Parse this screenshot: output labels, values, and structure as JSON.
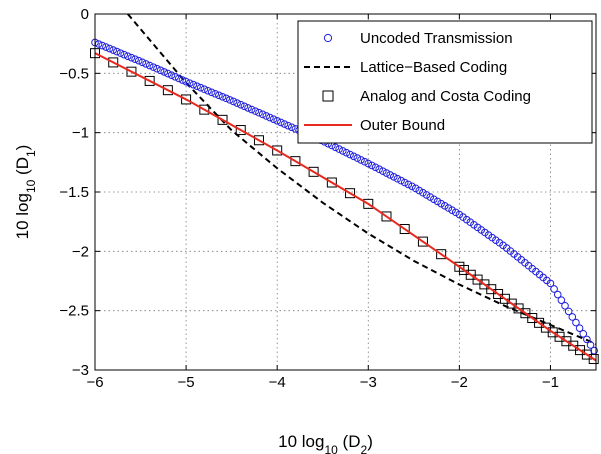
{
  "chart_data": {
    "type": "scatter",
    "xlabel": {
      "prefix": "10 log",
      "sub": "10",
      "suffix": " (D",
      "var_sub": "2",
      "close": ")"
    },
    "ylabel": {
      "prefix": "10 log",
      "sub": "10",
      "suffix": " (D",
      "var_sub": "1",
      "close": ")"
    },
    "xlim": [
      -6,
      -0.5
    ],
    "ylim": [
      -3,
      0
    ],
    "xticks": [
      -6,
      -5,
      -4,
      -3,
      -2,
      -1
    ],
    "xtick_labels": [
      "−6",
      "−5",
      "−4",
      "−3",
      "−2",
      "−1"
    ],
    "yticks": [
      0,
      -0.5,
      -1,
      -1.5,
      -2,
      -2.5,
      -3
    ],
    "ytick_labels": [
      "0",
      "−0.5",
      "−1",
      "−1.5",
      "−2",
      "−2.5",
      "−3"
    ],
    "grid": true,
    "legend_position": "top-right",
    "series": [
      {
        "name": "Uncoded Transmission",
        "style": "circle-markers",
        "color": "#1f1fdc",
        "points": [
          [
            -6.0,
            -0.24
          ],
          [
            -5.5,
            -0.4
          ],
          [
            -5.0,
            -0.57
          ],
          [
            -4.5,
            -0.73
          ],
          [
            -4.0,
            -0.9
          ],
          [
            -3.5,
            -1.07
          ],
          [
            -3.0,
            -1.26
          ],
          [
            -2.5,
            -1.46
          ],
          [
            -2.0,
            -1.69
          ],
          [
            -1.5,
            -1.96
          ],
          [
            -1.0,
            -2.27
          ],
          [
            -0.5,
            -2.86
          ]
        ]
      },
      {
        "name": "Lattice−Based Coding",
        "style": "dashed-line",
        "color": "#000000",
        "points": [
          [
            -5.64,
            0.0
          ],
          [
            -5.0,
            -0.58
          ],
          [
            -4.5,
            -0.98
          ],
          [
            -4.0,
            -1.3
          ],
          [
            -3.5,
            -1.59
          ],
          [
            -3.0,
            -1.85
          ],
          [
            -2.5,
            -2.08
          ],
          [
            -2.0,
            -2.28
          ],
          [
            -1.5,
            -2.46
          ],
          [
            -1.0,
            -2.62
          ],
          [
            -0.5,
            -2.78
          ]
        ]
      },
      {
        "name": "Analog and Costa Coding",
        "style": "square-markers",
        "color": "#000000",
        "points": [
          [
            -6.0,
            -0.33
          ],
          [
            -5.0,
            -0.72
          ],
          [
            -4.0,
            -1.15
          ],
          [
            -3.0,
            -1.6
          ],
          [
            -2.0,
            -2.13
          ],
          [
            -1.0,
            -2.67
          ],
          [
            -0.5,
            -2.92
          ]
        ]
      },
      {
        "name": "Outer Bound",
        "style": "solid-line",
        "color": "#e8291f",
        "points": [
          [
            -6.0,
            -0.33
          ],
          [
            -5.0,
            -0.72
          ],
          [
            -4.0,
            -1.15
          ],
          [
            -3.0,
            -1.6
          ],
          [
            -2.0,
            -2.13
          ],
          [
            -1.0,
            -2.67
          ],
          [
            -0.5,
            -2.92
          ]
        ]
      }
    ]
  }
}
